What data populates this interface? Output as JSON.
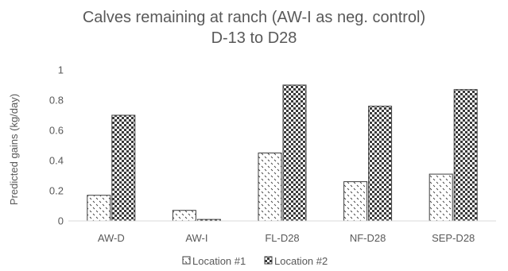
{
  "chart_data": {
    "type": "bar",
    "title": "Calves remaining at ranch (AW-I as neg. control)",
    "subtitle": "D-13 to D28",
    "xlabel": "",
    "ylabel": "Predicted gains (kg/day)",
    "ylim": [
      0,
      1
    ],
    "yticks": [
      "0",
      "0.2",
      "0.4",
      "0.6",
      "0.8",
      "1"
    ],
    "ytick_values": [
      0,
      0.2,
      0.4,
      0.6,
      0.8,
      1
    ],
    "categories": [
      "AW-D",
      "AW-I",
      "FL-D28",
      "NF-D28",
      "SEP-D28"
    ],
    "series": [
      {
        "name": "Location #1",
        "values": [
          0.17,
          0.07,
          0.45,
          0.26,
          0.31
        ],
        "pattern": "diagonal-dash"
      },
      {
        "name": "Location #2",
        "values": [
          0.7,
          0.01,
          0.9,
          0.76,
          0.87
        ],
        "pattern": "checker"
      }
    ],
    "grid": false,
    "legend_position": "bottom",
    "colors": {
      "text": "#595959",
      "bar_stroke": "#3f3f3f",
      "axis": "#d9d9d9"
    }
  }
}
